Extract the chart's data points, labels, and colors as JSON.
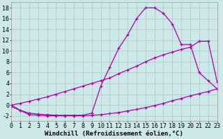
{
  "x": [
    0,
    1,
    2,
    3,
    4,
    5,
    6,
    7,
    8,
    9,
    10,
    11,
    12,
    13,
    14,
    15,
    16,
    17,
    18,
    19,
    20,
    21,
    22,
    23
  ],
  "line1": [
    0,
    -1,
    -1.5,
    -1.7,
    -1.8,
    -1.9,
    -1.9,
    -1.9,
    -1.9,
    -1.5,
    3.5,
    7,
    10.5,
    13,
    16,
    18,
    18,
    17,
    15,
    11.2,
    11.2,
    6,
    4.5,
    3
  ],
  "line2": [
    0,
    0.3,
    0.7,
    1.1,
    1.5,
    2.0,
    2.5,
    3.0,
    3.5,
    4.0,
    4.5,
    5.0,
    5.8,
    6.5,
    7.2,
    8.0,
    8.7,
    9.3,
    9.8,
    10.3,
    10.7,
    11.8,
    11.8,
    4.3
  ],
  "line3": [
    -0.3,
    -1.0,
    -1.8,
    -1.9,
    -2.0,
    -2.0,
    -2.0,
    -2.0,
    -2.0,
    -1.9,
    -1.8,
    -1.6,
    -1.4,
    -1.1,
    -0.8,
    -0.5,
    -0.1,
    0.3,
    0.8,
    1.2,
    1.7,
    2.1,
    2.5,
    3.0
  ],
  "color": "#aa00aa",
  "bg_color": "#cce8e8",
  "xlabel": "Windchill (Refroidissement éolien,°C)",
  "xlim": [
    0,
    23
  ],
  "ylim": [
    -3,
    19
  ],
  "yticks": [
    -2,
    0,
    2,
    4,
    6,
    8,
    10,
    12,
    14,
    16,
    18
  ],
  "xticks": [
    0,
    1,
    2,
    3,
    4,
    5,
    6,
    7,
    8,
    9,
    10,
    11,
    12,
    13,
    14,
    15,
    16,
    17,
    18,
    19,
    20,
    21,
    22,
    23
  ],
  "grid_color": "#aabbbb",
  "markersize": 3.5,
  "linewidth": 0.9,
  "xlabel_fontsize": 6.5,
  "tick_fontsize": 6.0
}
